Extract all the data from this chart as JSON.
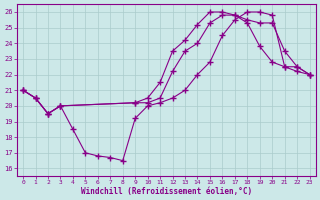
{
  "background_color": "#cce8e8",
  "grid_color": "#aacccc",
  "line_color": "#880088",
  "marker": "+",
  "markersize": 4,
  "linewidth": 0.8,
  "xlim": [
    -0.5,
    23.5
  ],
  "ylim": [
    15.5,
    26.5
  ],
  "yticks": [
    16,
    17,
    18,
    19,
    20,
    21,
    22,
    23,
    24,
    25,
    26
  ],
  "xticks": [
    0,
    1,
    2,
    3,
    4,
    5,
    6,
    7,
    8,
    9,
    10,
    11,
    12,
    13,
    14,
    15,
    16,
    17,
    18,
    19,
    20,
    21,
    22,
    23
  ],
  "xlabel": "Windchill (Refroidissement éolien,°C)",
  "line1_x": [
    0,
    1,
    2,
    3,
    9,
    10,
    11,
    12,
    13,
    14,
    15,
    16,
    17,
    18,
    19,
    20,
    21,
    22,
    23
  ],
  "line1_y": [
    21,
    20.5,
    19.5,
    20,
    20.2,
    20.5,
    21.5,
    23.5,
    24.2,
    25.2,
    26.0,
    26.0,
    25.8,
    25.3,
    23.8,
    22.8,
    22.5,
    22.2,
    22.0
  ],
  "line2_x": [
    0,
    1,
    2,
    3,
    4,
    5,
    6,
    7,
    8,
    9,
    10,
    11,
    12,
    13,
    14,
    15,
    16,
    17,
    18,
    19,
    20,
    21,
    22,
    23
  ],
  "line2_y": [
    21,
    20.5,
    19.5,
    20,
    18.5,
    17.0,
    16.8,
    16.7,
    16.5,
    19.2,
    20.0,
    20.2,
    20.5,
    21.0,
    22.0,
    22.8,
    24.5,
    25.5,
    26.0,
    26.0,
    25.8,
    22.5,
    22.5,
    22.0
  ],
  "line3_x": [
    0,
    1,
    2,
    3,
    9,
    10,
    11,
    12,
    13,
    14,
    15,
    16,
    17,
    18,
    19,
    20,
    21,
    22,
    23
  ],
  "line3_y": [
    21,
    20.5,
    19.5,
    20,
    20.2,
    20.2,
    20.5,
    22.2,
    23.5,
    24.0,
    25.3,
    25.8,
    25.8,
    25.5,
    25.3,
    25.3,
    23.5,
    22.5,
    22.0
  ]
}
